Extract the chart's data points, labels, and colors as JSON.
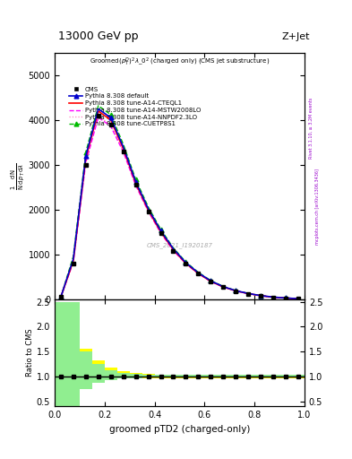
{
  "title_top": "13000 GeV pp",
  "title_right": "Z+Jet",
  "xlabel": "groomed pTD2 (charged-only)",
  "ylabel_ratio": "Ratio to CMS",
  "watermark": "CMS_2021_I1920187",
  "rivet_text": "Rivet 3.1.10, ≥ 3.2M events",
  "mcplots_text": "mcplots.cern.ch [arXiv:1306.3436]",
  "xcenters": [
    0.025,
    0.075,
    0.125,
    0.175,
    0.225,
    0.275,
    0.325,
    0.375,
    0.425,
    0.475,
    0.525,
    0.575,
    0.625,
    0.675,
    0.725,
    0.775,
    0.825,
    0.875,
    0.925,
    0.975
  ],
  "xbins": [
    0.0,
    0.05,
    0.1,
    0.15,
    0.2,
    0.25,
    0.3,
    0.35,
    0.4,
    0.45,
    0.5,
    0.55,
    0.6,
    0.65,
    0.7,
    0.75,
    0.8,
    0.85,
    0.9,
    0.95,
    1.0
  ],
  "cms_data": [
    50,
    800,
    3000,
    4100,
    3900,
    3300,
    2550,
    1950,
    1480,
    1080,
    790,
    570,
    395,
    270,
    185,
    125,
    78,
    48,
    28,
    14
  ],
  "pythia_default": [
    50,
    900,
    3200,
    4250,
    4050,
    3400,
    2620,
    2020,
    1530,
    1130,
    820,
    592,
    412,
    284,
    194,
    132,
    83,
    51,
    30,
    15
  ],
  "pythia_cteql1": [
    50,
    860,
    3150,
    4200,
    4000,
    3360,
    2590,
    1990,
    1505,
    1110,
    805,
    580,
    402,
    278,
    190,
    129,
    81,
    49,
    29,
    14.5
  ],
  "pythia_mstw": [
    50,
    830,
    3050,
    4060,
    3860,
    3290,
    2540,
    1960,
    1480,
    1090,
    795,
    575,
    398,
    275,
    188,
    128,
    80,
    48,
    28,
    14
  ],
  "pythia_nnpdf": [
    50,
    845,
    3080,
    4090,
    3890,
    3310,
    2555,
    1970,
    1490,
    1095,
    798,
    577,
    400,
    276,
    189,
    129,
    80.5,
    48.5,
    28.5,
    14.2
  ],
  "pythia_cuetp": [
    50,
    960,
    3280,
    4320,
    4120,
    3460,
    2670,
    2060,
    1560,
    1150,
    835,
    603,
    420,
    290,
    198,
    135,
    85,
    52,
    30.5,
    15.5
  ],
  "ratio_green_band_lo": [
    0.4,
    0.4,
    0.75,
    0.88,
    0.93,
    0.96,
    0.97,
    0.98,
    0.98,
    0.98,
    0.98,
    0.98,
    0.98,
    0.98,
    0.98,
    0.98,
    0.98,
    0.98,
    0.98,
    0.98
  ],
  "ratio_green_band_hi": [
    2.5,
    2.5,
    1.5,
    1.25,
    1.12,
    1.07,
    1.05,
    1.03,
    1.03,
    1.03,
    1.03,
    1.03,
    1.03,
    1.03,
    1.03,
    1.03,
    1.03,
    1.03,
    1.03,
    1.03
  ],
  "ratio_yellow_band_lo": [
    0.4,
    0.55,
    0.82,
    0.9,
    0.94,
    0.96,
    0.97,
    0.97,
    0.97,
    0.97,
    0.97,
    0.97,
    0.97,
    0.97,
    0.97,
    0.97,
    0.97,
    0.97,
    0.97,
    0.97
  ],
  "ratio_yellow_band_hi": [
    2.5,
    1.9,
    1.55,
    1.32,
    1.18,
    1.1,
    1.07,
    1.05,
    1.04,
    1.04,
    1.04,
    1.04,
    1.04,
    1.04,
    1.04,
    1.04,
    1.04,
    1.04,
    1.04,
    1.04
  ],
  "color_cms": "#000000",
  "color_default": "#0000cc",
  "color_cteql1": "#ff0000",
  "color_mstw": "#ff00ff",
  "color_nnpdf": "#ff80c0",
  "color_cuetp": "#00bb00",
  "yticks_main": [
    0,
    1000,
    2000,
    3000,
    4000,
    5000
  ],
  "ylim_main_max": 5500,
  "yticks_ratio": [
    0.5,
    1.0,
    1.5,
    2.0,
    2.5
  ]
}
